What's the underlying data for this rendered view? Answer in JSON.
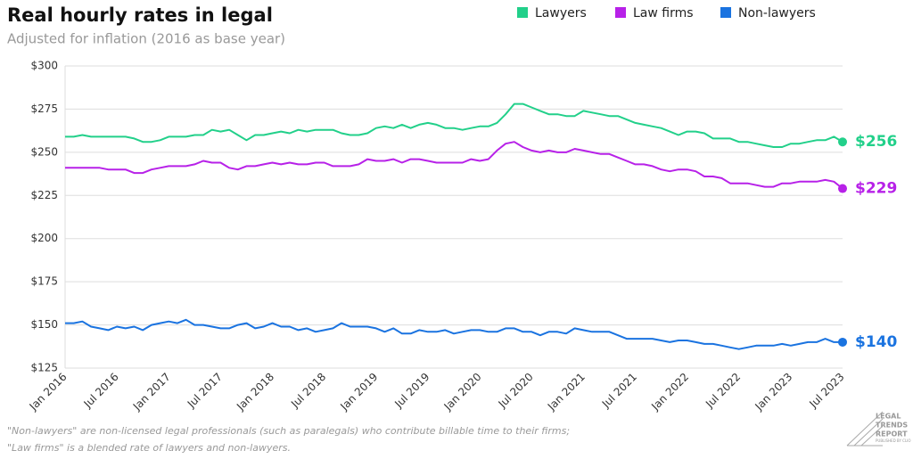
{
  "chart_data": {
    "type": "line",
    "title": "Real hourly rates in legal",
    "subtitle": "Adjusted for inflation (2016 as base year)",
    "footnote": [
      "\"Non-lawyers\" are non-licensed legal professionals (such as paralegals) who contribute billable time to their firms;",
      "\"Law firms\" is a blended rate of lawyers and non-lawyers."
    ],
    "logo": [
      "LEGAL",
      "TRENDS",
      "REPORT",
      "PUBLISHED BY CLIO"
    ],
    "categories": [
      "Jan 2016",
      null,
      null,
      null,
      null,
      null,
      "Jul 2016",
      null,
      null,
      null,
      null,
      null,
      "Jan 2017",
      null,
      null,
      null,
      null,
      null,
      "Jul 2017",
      null,
      null,
      null,
      null,
      null,
      "Jan 2018",
      null,
      null,
      null,
      null,
      null,
      "Jul 2018",
      null,
      null,
      null,
      null,
      null,
      "Jan 2019",
      null,
      null,
      null,
      null,
      null,
      "Jul 2019",
      null,
      null,
      null,
      null,
      null,
      "Jan 2020",
      null,
      null,
      null,
      null,
      null,
      "Jul 2020",
      null,
      null,
      null,
      null,
      null,
      "Jan 2021",
      null,
      null,
      null,
      null,
      null,
      "Jul 2021",
      null,
      null,
      null,
      null,
      null,
      "Jan 2022",
      null,
      null,
      null,
      null,
      null,
      "Jul 2022",
      null,
      null,
      null,
      null,
      null,
      "Jan 2023",
      null,
      null,
      null,
      null,
      null,
      "Jul 2023"
    ],
    "series": [
      {
        "name": "Lawyers",
        "color": "#22d08a",
        "values": [
          259,
          259,
          260,
          259,
          259,
          259,
          259,
          259,
          258,
          256,
          256,
          257,
          259,
          259,
          259,
          260,
          260,
          263,
          262,
          263,
          260,
          257,
          260,
          260,
          261,
          262,
          261,
          263,
          262,
          263,
          263,
          263,
          261,
          260,
          260,
          261,
          264,
          265,
          264,
          266,
          264,
          266,
          267,
          266,
          264,
          264,
          263,
          264,
          265,
          265,
          267,
          272,
          278,
          278,
          276,
          274,
          272,
          272,
          271,
          271,
          274,
          273,
          272,
          271,
          271,
          269,
          267,
          266,
          265,
          264,
          262,
          260,
          262,
          262,
          261,
          258,
          258,
          258,
          256,
          256,
          255,
          254,
          253,
          253,
          255,
          255,
          256,
          257,
          257,
          259,
          256
        ],
        "value_labels": [
          null,
          null,
          null,
          null,
          null,
          null,
          null,
          null,
          null,
          null,
          null,
          null,
          null,
          null,
          null,
          null,
          null,
          null,
          null,
          null,
          null,
          null,
          null,
          null,
          null,
          null,
          null,
          null,
          null,
          null,
          null,
          null,
          null,
          null,
          null,
          null,
          null,
          null,
          null,
          null,
          null,
          null,
          null,
          null,
          null,
          null,
          null,
          null,
          null,
          null,
          null,
          null,
          null,
          null,
          null,
          null,
          null,
          null,
          null,
          null,
          null,
          null,
          null,
          null,
          null,
          null,
          null,
          null,
          null,
          null,
          null,
          null,
          null,
          null,
          null,
          null,
          null,
          null,
          null,
          null,
          null,
          null,
          null,
          null,
          null,
          null,
          null,
          null,
          null,
          null,
          "$256"
        ]
      },
      {
        "name": "Law firms",
        "color": "#b721e8",
        "values": [
          241,
          241,
          241,
          241,
          241,
          240,
          240,
          240,
          238,
          238,
          240,
          241,
          242,
          242,
          242,
          243,
          245,
          244,
          244,
          241,
          240,
          242,
          242,
          243,
          244,
          243,
          244,
          243,
          243,
          244,
          244,
          242,
          242,
          242,
          243,
          246,
          245,
          245,
          246,
          244,
          246,
          246,
          245,
          244,
          244,
          244,
          244,
          246,
          245,
          246,
          251,
          255,
          256,
          253,
          251,
          250,
          251,
          250,
          250,
          252,
          251,
          250,
          249,
          249,
          247,
          245,
          243,
          243,
          242,
          240,
          239,
          240,
          240,
          239,
          236,
          236,
          235,
          232,
          232,
          232,
          231,
          230,
          230,
          232,
          232,
          233,
          233,
          233,
          234,
          233,
          229
        ],
        "value_labels": [
          null,
          null,
          null,
          null,
          null,
          null,
          null,
          null,
          null,
          null,
          null,
          null,
          null,
          null,
          null,
          null,
          null,
          null,
          null,
          null,
          null,
          null,
          null,
          null,
          null,
          null,
          null,
          null,
          null,
          null,
          null,
          null,
          null,
          null,
          null,
          null,
          null,
          null,
          null,
          null,
          null,
          null,
          null,
          null,
          null,
          null,
          null,
          null,
          null,
          null,
          null,
          null,
          null,
          null,
          null,
          null,
          null,
          null,
          null,
          null,
          null,
          null,
          null,
          null,
          null,
          null,
          null,
          null,
          null,
          null,
          null,
          null,
          null,
          null,
          null,
          null,
          null,
          null,
          null,
          null,
          null,
          null,
          null,
          null,
          null,
          null,
          null,
          null,
          null,
          null,
          "$229"
        ]
      },
      {
        "name": "Non-lawyers",
        "color": "#1a73e0",
        "values": [
          151,
          151,
          152,
          149,
          148,
          147,
          149,
          148,
          149,
          147,
          150,
          151,
          152,
          151,
          153,
          150,
          150,
          149,
          148,
          148,
          150,
          151,
          148,
          149,
          151,
          149,
          149,
          147,
          148,
          146,
          147,
          148,
          151,
          149,
          149,
          149,
          148,
          146,
          148,
          145,
          145,
          147,
          146,
          146,
          147,
          145,
          146,
          147,
          147,
          146,
          146,
          148,
          148,
          146,
          146,
          144,
          146,
          146,
          145,
          148,
          147,
          146,
          146,
          146,
          144,
          142,
          142,
          142,
          142,
          141,
          140,
          141,
          141,
          140,
          139,
          139,
          138,
          137,
          136,
          137,
          138,
          138,
          138,
          139,
          138,
          139,
          140,
          140,
          142,
          140,
          140
        ],
        "value_labels": [
          null,
          null,
          null,
          null,
          null,
          null,
          null,
          null,
          null,
          null,
          null,
          null,
          null,
          null,
          null,
          null,
          null,
          null,
          null,
          null,
          null,
          null,
          null,
          null,
          null,
          null,
          null,
          null,
          null,
          null,
          null,
          null,
          null,
          null,
          null,
          null,
          null,
          null,
          null,
          null,
          null,
          null,
          null,
          null,
          null,
          null,
          null,
          null,
          null,
          null,
          null,
          null,
          null,
          null,
          null,
          null,
          null,
          null,
          null,
          null,
          null,
          null,
          null,
          null,
          null,
          null,
          null,
          null,
          null,
          null,
          null,
          null,
          null,
          null,
          null,
          null,
          null,
          null,
          null,
          null,
          null,
          null,
          null,
          null,
          null,
          null,
          null,
          null,
          null,
          null,
          "$140"
        ]
      }
    ],
    "ylim": [
      125,
      300
    ],
    "yticks": [
      {
        "value": 125,
        "label": "$125"
      },
      {
        "value": 150,
        "label": "$150"
      },
      {
        "value": 175,
        "label": "$175"
      },
      {
        "value": 200,
        "label": "$200"
      },
      {
        "value": 225,
        "label": "$225"
      },
      {
        "value": 250,
        "label": "$250"
      },
      {
        "value": 275,
        "label": "$275"
      },
      {
        "value": 300,
        "label": "$300"
      }
    ],
    "grid": true,
    "legend": "top-right"
  }
}
